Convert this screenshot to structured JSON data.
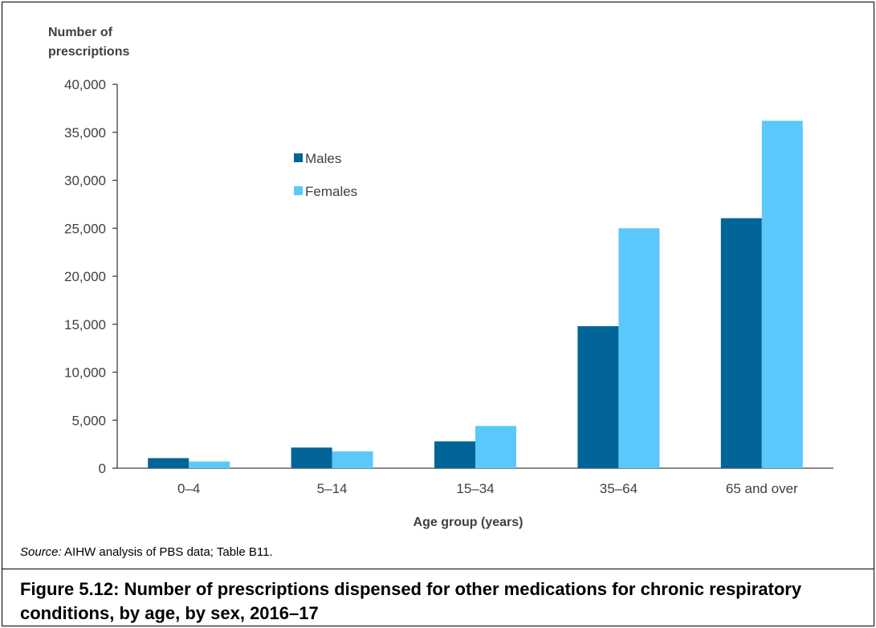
{
  "chart_data": {
    "type": "bar",
    "ylabel": "Number of\nprescriptions",
    "xlabel": "Age group (years)",
    "categories": [
      "0–4",
      "5–14",
      "15–34",
      "35–64",
      "65 and over"
    ],
    "series": [
      {
        "name": "Males",
        "values": [
          1050,
          2150,
          2800,
          14800,
          26050
        ]
      },
      {
        "name": "Females",
        "values": [
          700,
          1750,
          4400,
          25000,
          36200
        ]
      }
    ],
    "ylim": [
      0,
      40000
    ],
    "yticks": [
      0,
      5000,
      10000,
      15000,
      20000,
      25000,
      30000,
      35000,
      40000
    ],
    "ytick_labels": [
      "0",
      "5,000",
      "10,000",
      "15,000",
      "20,000",
      "25,000",
      "30,000",
      "35,000",
      "40,000"
    ],
    "grid": false,
    "legend_position": "top-center",
    "colors": {
      "Males": "#006596",
      "Females": "#5bc8fb"
    }
  },
  "source": {
    "label": "Source:",
    "text": " AIHW analysis of PBS data; Table B11."
  },
  "caption": "Figure 5.12: Number of prescriptions dispensed for other medications for chronic respiratory conditions, by age, by sex, 2016–17"
}
